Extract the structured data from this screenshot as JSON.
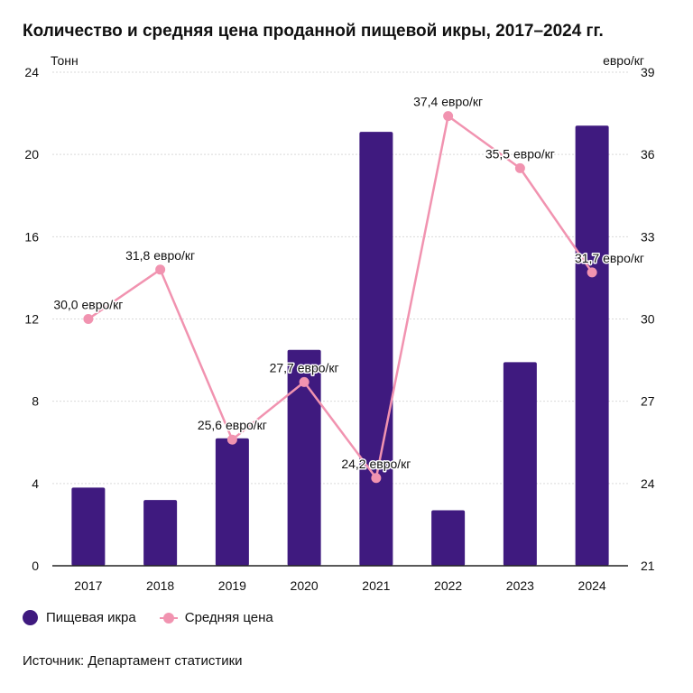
{
  "title": "Количество и средняя цена проданной пищевой икры, 2017–2024 гг.",
  "source": "Источник: Департамент статистики",
  "colors": {
    "bar": "#3f1a7f",
    "line": "#f193b0",
    "grid": "#d9d9d9",
    "axis": "#222222"
  },
  "legend": [
    {
      "label": "Пищевая икра",
      "kind": "bar"
    },
    {
      "label": "Средняя цена",
      "kind": "line"
    }
  ],
  "chart_data": {
    "type": "bar+line",
    "categories": [
      "2017",
      "2018",
      "2019",
      "2020",
      "2021",
      "2022",
      "2023",
      "2024"
    ],
    "series": [
      {
        "name": "Пищевая икра",
        "type": "bar",
        "axis": "left",
        "values": [
          3.8,
          3.2,
          6.2,
          10.5,
          21.1,
          2.7,
          9.9,
          21.4
        ]
      },
      {
        "name": "Средняя цена",
        "type": "line",
        "axis": "right",
        "values": [
          30.0,
          31.8,
          25.6,
          27.7,
          24.2,
          37.4,
          35.5,
          31.7
        ],
        "labels": [
          "30,0 евро/кг",
          "31,8 евро/кг",
          "25,6 евро/кг",
          "27,7 евро/кг",
          "24,2 евро/кг",
          "37,4 евро/кг",
          "35,5 евро/кг",
          "31,7 евро/кг"
        ]
      }
    ],
    "y_left": {
      "unit": "Тонн",
      "ylim": [
        0,
        24
      ],
      "ticks": [
        0,
        4,
        8,
        12,
        16,
        20,
        24
      ]
    },
    "y_right": {
      "unit": "евро/кг",
      "ylim": [
        21,
        39
      ],
      "ticks": [
        21,
        24,
        27,
        30,
        33,
        36,
        39
      ]
    },
    "grid": true,
    "legend_position": "bottom-left"
  }
}
